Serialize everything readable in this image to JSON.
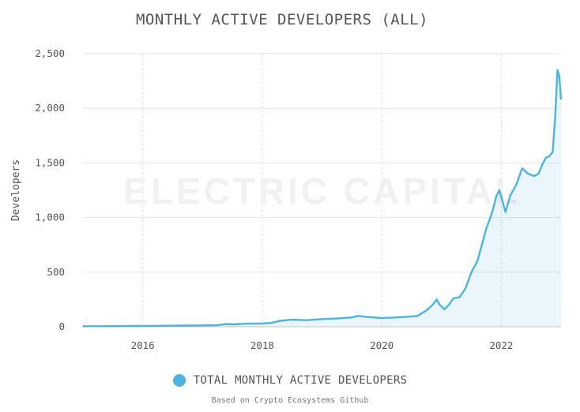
{
  "chart_data": {
    "type": "area",
    "title": "MONTHLY ACTIVE DEVELOPERS (ALL)",
    "ylabel": "Developers",
    "xlabel": "",
    "xlim": [
      2015.0,
      2023.0
    ],
    "ylim": [
      0,
      2500
    ],
    "yticks": [
      0,
      500,
      1000,
      1500,
      2000,
      2500
    ],
    "ytick_labels": [
      "0",
      "500",
      "1,000",
      "1,500",
      "2,000",
      "2,500"
    ],
    "xticks": [
      2016,
      2018,
      2020,
      2022
    ],
    "xtick_labels": [
      "2016",
      "2018",
      "2020",
      "2022"
    ],
    "grid": true,
    "watermark": "ELECTRIC CAPITAL",
    "series": [
      {
        "name": "TOTAL MONTHLY ACTIVE DEVELOPERS",
        "color": "#4fb3e0",
        "x": [
          2015.0,
          2015.25,
          2015.5,
          2015.75,
          2016.0,
          2016.25,
          2016.5,
          2016.75,
          2017.0,
          2017.25,
          2017.4,
          2017.5,
          2017.75,
          2018.0,
          2018.15,
          2018.3,
          2018.5,
          2018.75,
          2019.0,
          2019.25,
          2019.5,
          2019.6,
          2019.75,
          2020.0,
          2020.25,
          2020.5,
          2020.6,
          2020.75,
          2020.85,
          2020.92,
          2020.97,
          2021.05,
          2021.12,
          2021.2,
          2021.3,
          2021.4,
          2021.5,
          2021.6,
          2021.7,
          2021.75,
          2021.85,
          2021.92,
          2021.97,
          2022.02,
          2022.07,
          2022.15,
          2022.25,
          2022.35,
          2022.45,
          2022.55,
          2022.62,
          2022.7,
          2022.75,
          2022.8,
          2022.86,
          2022.9,
          2022.94,
          2022.97,
          2023.0
        ],
        "y": [
          5,
          5,
          6,
          7,
          8,
          9,
          10,
          11,
          12,
          15,
          25,
          22,
          28,
          30,
          35,
          55,
          65,
          60,
          70,
          75,
          85,
          100,
          90,
          80,
          85,
          95,
          100,
          150,
          200,
          250,
          200,
          160,
          200,
          260,
          270,
          350,
          500,
          600,
          800,
          900,
          1050,
          1200,
          1250,
          1150,
          1050,
          1200,
          1300,
          1450,
          1400,
          1380,
          1400,
          1500,
          1550,
          1560,
          1600,
          1900,
          2350,
          2300,
          2080
        ]
      }
    ]
  },
  "legend": {
    "label": "TOTAL MONTHLY ACTIVE DEVELOPERS"
  },
  "footer": {
    "source": "Based on Crypto Ecosystems Github"
  }
}
